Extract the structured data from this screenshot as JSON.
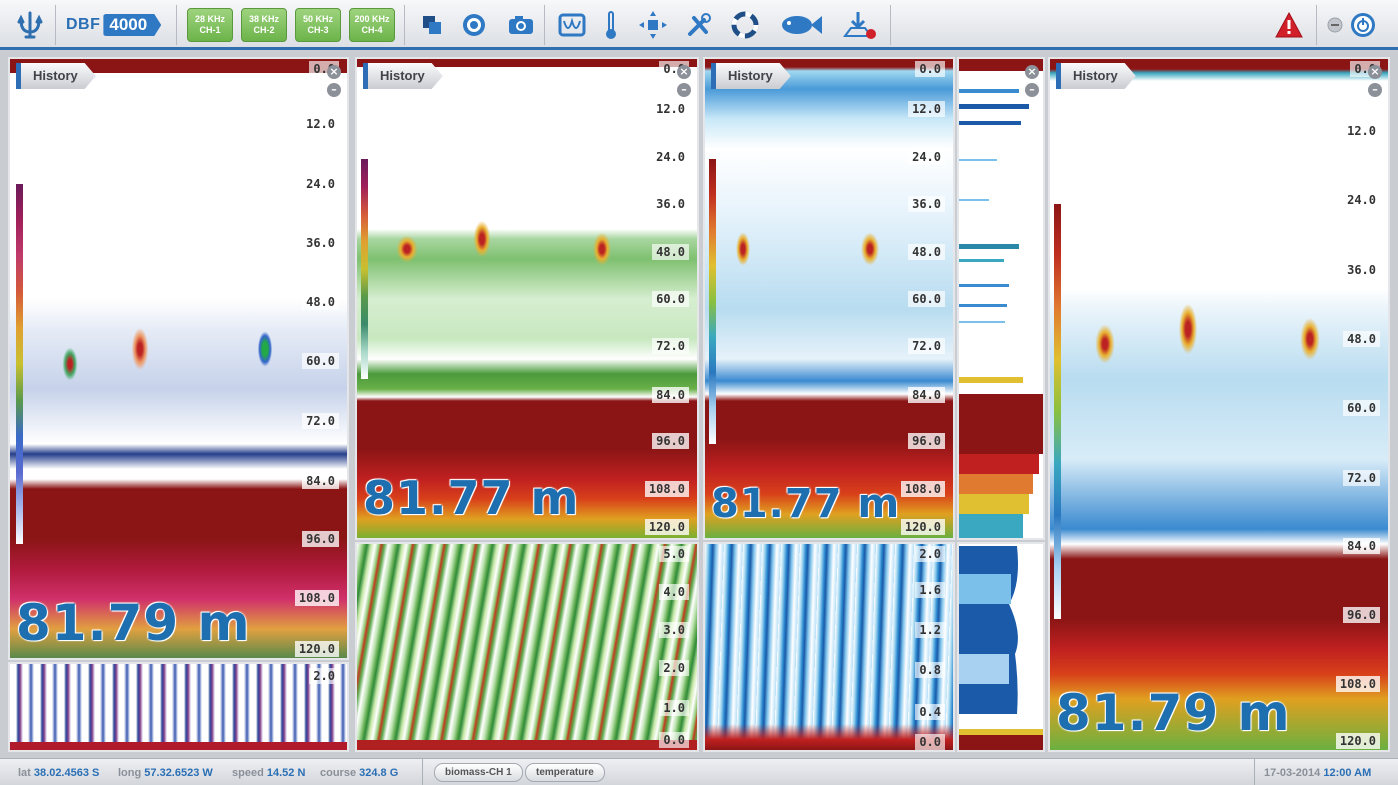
{
  "toolbar": {
    "logo_text": "DBF",
    "logo_badge": "4000",
    "channels": [
      {
        "freq": "28 KHz",
        "ch": "CH-1"
      },
      {
        "freq": "38 KHz",
        "ch": "CH-2"
      },
      {
        "freq": "50 KHz",
        "ch": "CH-3"
      },
      {
        "freq": "200 KHz",
        "ch": "CH-4"
      }
    ],
    "icons": [
      "anchor-icon",
      "layers-icon",
      "target-icon",
      "camera-icon",
      "scope-icon",
      "thermometer-icon",
      "move-icon",
      "tools-icon",
      "lifebuoy-icon",
      "fish-icon",
      "download-icon",
      "warning-icon",
      "minimize-icon",
      "power-icon"
    ],
    "accent_color": "#2f6fb0",
    "channel_color": "#7cc05a"
  },
  "panels": {
    "p1": {
      "tab": "History",
      "depth_labels": [
        "0.0",
        "12.0",
        "24.0",
        "36.0",
        "48.0",
        "60.0",
        "72.0",
        "84.0",
        "96.0",
        "108.0",
        "120.0"
      ],
      "bottom_depth": "81.79 m",
      "sub_labels": [
        "2.0"
      ]
    },
    "p2": {
      "tab": "History",
      "depth_labels": [
        "0.0",
        "12.0",
        "24.0",
        "36.0",
        "48.0",
        "60.0",
        "72.0",
        "84.0",
        "96.0",
        "108.0",
        "120.0"
      ],
      "bottom_depth": "81.77 m",
      "sub_labels": [
        "5.0",
        "4.0",
        "3.0",
        "2.0",
        "1.0",
        "0.0"
      ]
    },
    "p3": {
      "tab": "History",
      "depth_labels": [
        "0.0",
        "12.0",
        "24.0",
        "36.0",
        "48.0",
        "60.0",
        "72.0",
        "84.0",
        "96.0",
        "108.0",
        "120.0"
      ],
      "bottom_depth": "81.77 m",
      "sub_labels": [
        "2.0",
        "1.6",
        "1.2",
        "0.8",
        "0.4",
        "0.0"
      ]
    },
    "p4": {
      "tab": "History",
      "depth_labels": [
        "0.0",
        "12.0",
        "24.0",
        "36.0",
        "48.0",
        "60.0",
        "72.0",
        "84.0",
        "96.0",
        "108.0",
        "120.0"
      ],
      "bottom_depth": "81.79 m"
    }
  },
  "status": {
    "lat_label": "lat",
    "lat": "38.02.4563 S",
    "long_label": "long",
    "long": "57.32.6523 W",
    "speed_label": "speed",
    "speed": "14.52 N",
    "course_label": "course",
    "course": "324.8 G",
    "tabs": [
      "biomass-CH 1",
      "temperature"
    ],
    "date": "17-03-2014",
    "time": "12:00 AM"
  },
  "colors": {
    "seabed": "#8b1515",
    "depth_text": "#1e6fb0"
  }
}
